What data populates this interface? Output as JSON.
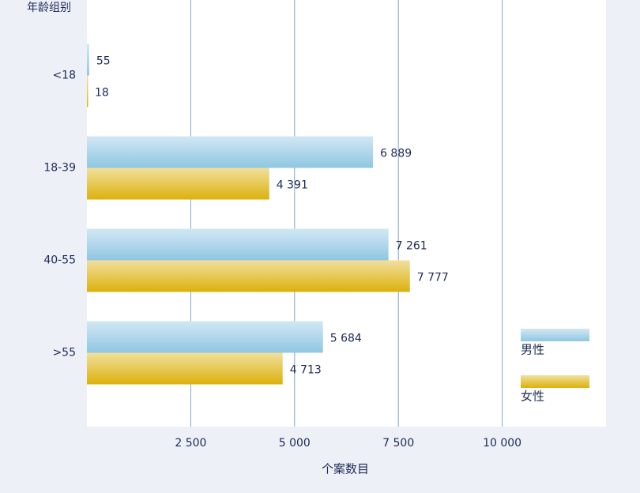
{
  "chart_data": {
    "type": "bar",
    "orientation": "horizontal",
    "y_axis_label": "年龄组别",
    "x_axis_label": "个案数目",
    "categories": [
      "<18",
      "18-39",
      "40-55",
      ">55"
    ],
    "series": [
      {
        "name": "男性",
        "color": "#8fc6e2",
        "values": [
          55,
          6889,
          7261,
          5684
        ],
        "value_labels": [
          "55",
          "6 889",
          "7 261",
          "5 684"
        ]
      },
      {
        "name": "女性",
        "color": "#dcb10c",
        "values": [
          18,
          4391,
          7777,
          4713
        ],
        "value_labels": [
          "18",
          "4 391",
          "7 777",
          "4 713"
        ]
      }
    ],
    "xlim": [
      0,
      12500
    ],
    "xticks": [
      {
        "value": 2500,
        "label": "2 500"
      },
      {
        "value": 5000,
        "label": "5 000"
      },
      {
        "value": 7500,
        "label": "7 500"
      },
      {
        "value": 10000,
        "label": "10  000"
      }
    ],
    "grid": true,
    "legend": "lower right"
  }
}
